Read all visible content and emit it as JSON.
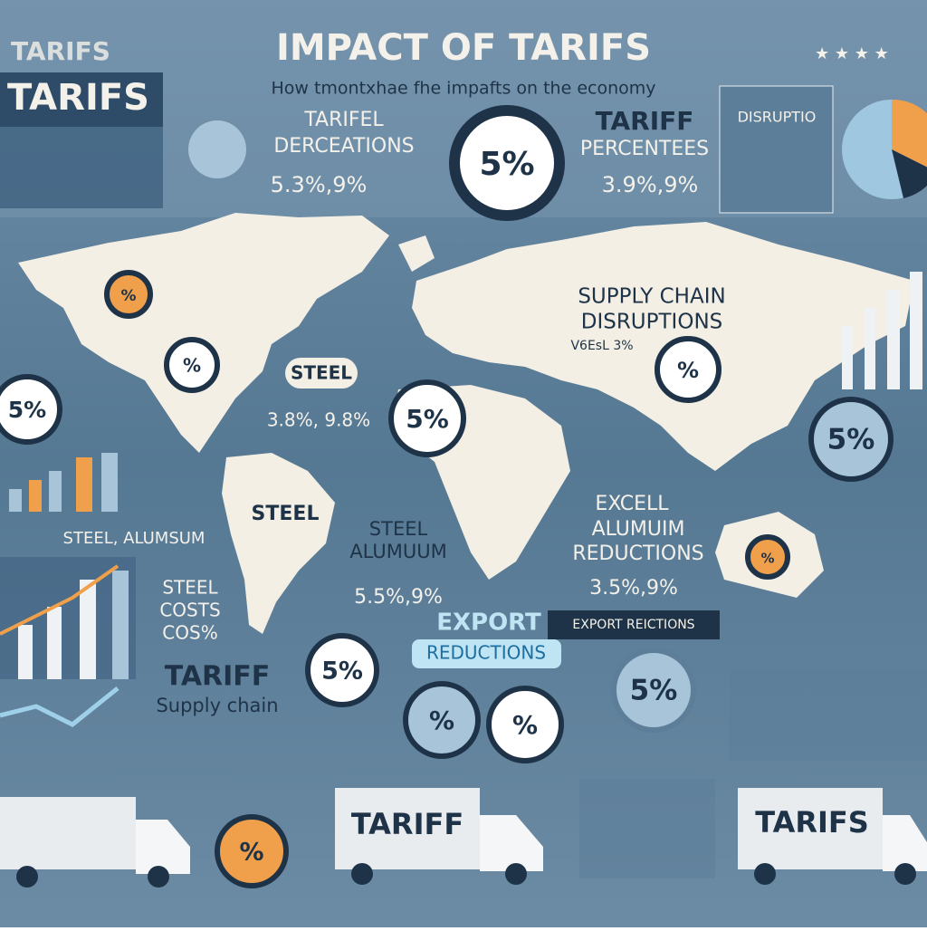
{
  "header": {
    "tag": "TARIFS",
    "banner": "TARIFS",
    "title": "IMPACT OF TARIFS",
    "subtitle": "How tmontxhae fhe impafts on the economy"
  },
  "panels": {
    "decreases": {
      "lines": [
        "TARIFEL",
        "DERCEATIONS"
      ],
      "figure": "5.3%,9%"
    },
    "percentages": {
      "lines": [
        "TARIFF",
        "PERCENTEES"
      ],
      "figure": "3.9%,9%"
    },
    "disruption_box": {
      "title": "DISRUPTIO"
    },
    "supply_chain": {
      "lines": [
        "SUPPLY CHAIN",
        "DISRUPTIONS"
      ],
      "figure": "V6EsL 3%"
    },
    "steel_tag": {
      "title": "STEEL",
      "figure": "3.8%, 9.8%"
    },
    "steel_aluminum": {
      "title": "STEEL, ALUMSUM"
    },
    "south_america": {
      "title": "STEEL"
    },
    "africa": {
      "lines": [
        "STEEL",
        "ALUMUUM"
      ],
      "figure": "5.5%,9%"
    },
    "asia": {
      "lines": [
        "EXCELL",
        "ALUMUIM",
        "REDUCTIONS"
      ],
      "figure": "3.5%,9%"
    },
    "steel_costs": {
      "lines": [
        "STEEL",
        "COSTS",
        "COS%"
      ]
    },
    "export": {
      "title": "EXPORT",
      "button": "REDUCTIONS",
      "tag": "EXPORT REICTIONS"
    },
    "tariff_supply": {
      "title": "TARIFF",
      "subtitle": "Supply chain"
    }
  },
  "badges": [
    "5%",
    "5%",
    "5%",
    "5%",
    "5%",
    "5%",
    "%",
    "%",
    "%",
    "%",
    "%",
    "%",
    "%"
  ],
  "trucks": [
    "TARIFF",
    "TARIFS"
  ]
}
